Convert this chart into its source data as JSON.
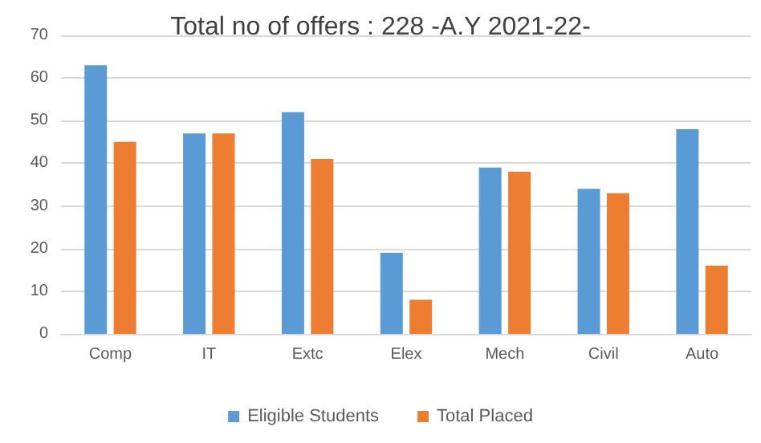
{
  "chart_data": {
    "type": "bar",
    "title": "Total no of offers : 228 -A.Y 2021-22-",
    "categories": [
      "Comp",
      "IT",
      "Extc",
      "Elex",
      "Mech",
      "Civil",
      "Auto"
    ],
    "series": [
      {
        "name": "Eligible Students",
        "color": "#5b9bd5",
        "values": [
          63,
          47,
          52,
          19,
          39,
          34,
          48
        ]
      },
      {
        "name": "Total Placed",
        "color": "#ed7d31",
        "values": [
          45,
          47,
          41,
          8,
          38,
          33,
          16
        ]
      }
    ],
    "ylim": [
      0,
      70
    ],
    "yticks": [
      0,
      10,
      20,
      30,
      40,
      50,
      60,
      70
    ],
    "grid": "y",
    "legend": "bottom"
  }
}
